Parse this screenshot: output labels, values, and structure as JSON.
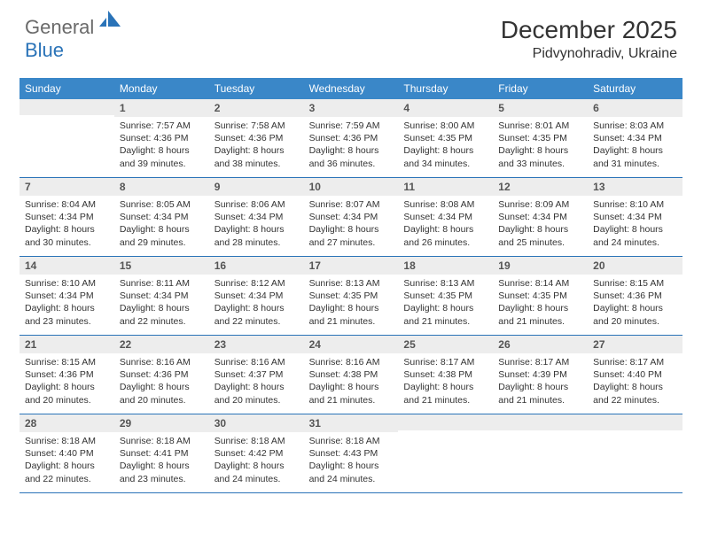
{
  "brand": {
    "textGeneral": "General",
    "textBlue": "Blue"
  },
  "title": "December 2025",
  "location": "Pidvynohradiv, Ukraine",
  "colors": {
    "headerBar": "#3a87c8",
    "rowDivider": "#2a73b8",
    "dayNumBg": "#ededed",
    "logoBlue": "#2a73b8",
    "logoGray": "#6a6a6a",
    "background": "#ffffff"
  },
  "dayNames": [
    "Sunday",
    "Monday",
    "Tuesday",
    "Wednesday",
    "Thursday",
    "Friday",
    "Saturday"
  ],
  "weeks": [
    [
      {
        "num": "",
        "sunrise": "",
        "sunset": "",
        "daylight": ""
      },
      {
        "num": "1",
        "sunrise": "Sunrise: 7:57 AM",
        "sunset": "Sunset: 4:36 PM",
        "daylight": "Daylight: 8 hours and 39 minutes."
      },
      {
        "num": "2",
        "sunrise": "Sunrise: 7:58 AM",
        "sunset": "Sunset: 4:36 PM",
        "daylight": "Daylight: 8 hours and 38 minutes."
      },
      {
        "num": "3",
        "sunrise": "Sunrise: 7:59 AM",
        "sunset": "Sunset: 4:36 PM",
        "daylight": "Daylight: 8 hours and 36 minutes."
      },
      {
        "num": "4",
        "sunrise": "Sunrise: 8:00 AM",
        "sunset": "Sunset: 4:35 PM",
        "daylight": "Daylight: 8 hours and 34 minutes."
      },
      {
        "num": "5",
        "sunrise": "Sunrise: 8:01 AM",
        "sunset": "Sunset: 4:35 PM",
        "daylight": "Daylight: 8 hours and 33 minutes."
      },
      {
        "num": "6",
        "sunrise": "Sunrise: 8:03 AM",
        "sunset": "Sunset: 4:34 PM",
        "daylight": "Daylight: 8 hours and 31 minutes."
      }
    ],
    [
      {
        "num": "7",
        "sunrise": "Sunrise: 8:04 AM",
        "sunset": "Sunset: 4:34 PM",
        "daylight": "Daylight: 8 hours and 30 minutes."
      },
      {
        "num": "8",
        "sunrise": "Sunrise: 8:05 AM",
        "sunset": "Sunset: 4:34 PM",
        "daylight": "Daylight: 8 hours and 29 minutes."
      },
      {
        "num": "9",
        "sunrise": "Sunrise: 8:06 AM",
        "sunset": "Sunset: 4:34 PM",
        "daylight": "Daylight: 8 hours and 28 minutes."
      },
      {
        "num": "10",
        "sunrise": "Sunrise: 8:07 AM",
        "sunset": "Sunset: 4:34 PM",
        "daylight": "Daylight: 8 hours and 27 minutes."
      },
      {
        "num": "11",
        "sunrise": "Sunrise: 8:08 AM",
        "sunset": "Sunset: 4:34 PM",
        "daylight": "Daylight: 8 hours and 26 minutes."
      },
      {
        "num": "12",
        "sunrise": "Sunrise: 8:09 AM",
        "sunset": "Sunset: 4:34 PM",
        "daylight": "Daylight: 8 hours and 25 minutes."
      },
      {
        "num": "13",
        "sunrise": "Sunrise: 8:10 AM",
        "sunset": "Sunset: 4:34 PM",
        "daylight": "Daylight: 8 hours and 24 minutes."
      }
    ],
    [
      {
        "num": "14",
        "sunrise": "Sunrise: 8:10 AM",
        "sunset": "Sunset: 4:34 PM",
        "daylight": "Daylight: 8 hours and 23 minutes."
      },
      {
        "num": "15",
        "sunrise": "Sunrise: 8:11 AM",
        "sunset": "Sunset: 4:34 PM",
        "daylight": "Daylight: 8 hours and 22 minutes."
      },
      {
        "num": "16",
        "sunrise": "Sunrise: 8:12 AM",
        "sunset": "Sunset: 4:34 PM",
        "daylight": "Daylight: 8 hours and 22 minutes."
      },
      {
        "num": "17",
        "sunrise": "Sunrise: 8:13 AM",
        "sunset": "Sunset: 4:35 PM",
        "daylight": "Daylight: 8 hours and 21 minutes."
      },
      {
        "num": "18",
        "sunrise": "Sunrise: 8:13 AM",
        "sunset": "Sunset: 4:35 PM",
        "daylight": "Daylight: 8 hours and 21 minutes."
      },
      {
        "num": "19",
        "sunrise": "Sunrise: 8:14 AM",
        "sunset": "Sunset: 4:35 PM",
        "daylight": "Daylight: 8 hours and 21 minutes."
      },
      {
        "num": "20",
        "sunrise": "Sunrise: 8:15 AM",
        "sunset": "Sunset: 4:36 PM",
        "daylight": "Daylight: 8 hours and 20 minutes."
      }
    ],
    [
      {
        "num": "21",
        "sunrise": "Sunrise: 8:15 AM",
        "sunset": "Sunset: 4:36 PM",
        "daylight": "Daylight: 8 hours and 20 minutes."
      },
      {
        "num": "22",
        "sunrise": "Sunrise: 8:16 AM",
        "sunset": "Sunset: 4:36 PM",
        "daylight": "Daylight: 8 hours and 20 minutes."
      },
      {
        "num": "23",
        "sunrise": "Sunrise: 8:16 AM",
        "sunset": "Sunset: 4:37 PM",
        "daylight": "Daylight: 8 hours and 20 minutes."
      },
      {
        "num": "24",
        "sunrise": "Sunrise: 8:16 AM",
        "sunset": "Sunset: 4:38 PM",
        "daylight": "Daylight: 8 hours and 21 minutes."
      },
      {
        "num": "25",
        "sunrise": "Sunrise: 8:17 AM",
        "sunset": "Sunset: 4:38 PM",
        "daylight": "Daylight: 8 hours and 21 minutes."
      },
      {
        "num": "26",
        "sunrise": "Sunrise: 8:17 AM",
        "sunset": "Sunset: 4:39 PM",
        "daylight": "Daylight: 8 hours and 21 minutes."
      },
      {
        "num": "27",
        "sunrise": "Sunrise: 8:17 AM",
        "sunset": "Sunset: 4:40 PM",
        "daylight": "Daylight: 8 hours and 22 minutes."
      }
    ],
    [
      {
        "num": "28",
        "sunrise": "Sunrise: 8:18 AM",
        "sunset": "Sunset: 4:40 PM",
        "daylight": "Daylight: 8 hours and 22 minutes."
      },
      {
        "num": "29",
        "sunrise": "Sunrise: 8:18 AM",
        "sunset": "Sunset: 4:41 PM",
        "daylight": "Daylight: 8 hours and 23 minutes."
      },
      {
        "num": "30",
        "sunrise": "Sunrise: 8:18 AM",
        "sunset": "Sunset: 4:42 PM",
        "daylight": "Daylight: 8 hours and 24 minutes."
      },
      {
        "num": "31",
        "sunrise": "Sunrise: 8:18 AM",
        "sunset": "Sunset: 4:43 PM",
        "daylight": "Daylight: 8 hours and 24 minutes."
      },
      {
        "num": "",
        "sunrise": "",
        "sunset": "",
        "daylight": ""
      },
      {
        "num": "",
        "sunrise": "",
        "sunset": "",
        "daylight": ""
      },
      {
        "num": "",
        "sunrise": "",
        "sunset": "",
        "daylight": ""
      }
    ]
  ]
}
